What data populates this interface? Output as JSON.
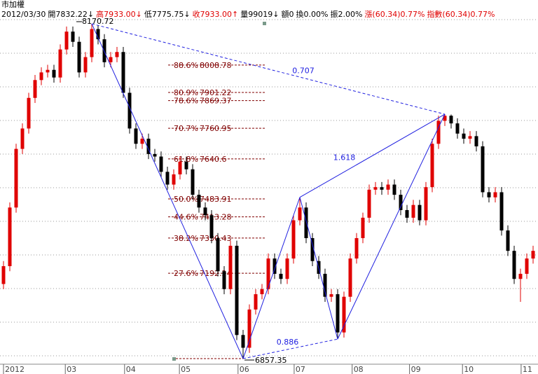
{
  "chart_data": {
    "type": "candlestick",
    "title": "市加權",
    "header": [
      {
        "text": "2012/03/30",
        "color": "#000000"
      },
      {
        "text": "開7832.22↓",
        "color": "#000000"
      },
      {
        "text": "高7933.00↓",
        "color": "#e00000"
      },
      {
        "text": "低7775.75↓",
        "color": "#000000"
      },
      {
        "text": "收7933.00↑",
        "color": "#e00000"
      },
      {
        "text": "量99019↓",
        "color": "#000000"
      },
      {
        "text": "額0",
        "color": "#000000"
      },
      {
        "text": "換0.00%",
        "color": "#000000"
      },
      {
        "text": "振2.00%",
        "color": "#000000"
      },
      {
        "text": "漲(60.34)0.77%",
        "color": "#e00000"
      },
      {
        "text": "指數(60.34)0.77%",
        "color": "#e00000"
      }
    ],
    "up_color": "#e00000",
    "down_color": "#000000",
    "ylim": [
      6797,
      8264
    ],
    "xticks": [
      {
        "value": 0,
        "label": "2012"
      },
      {
        "value": 9.8,
        "label": "03"
      },
      {
        "value": 19.2,
        "label": "04"
      },
      {
        "value": 27.9,
        "label": "05"
      },
      {
        "value": 37.2,
        "label": "06"
      },
      {
        "value": 46.1,
        "label": "07"
      },
      {
        "value": 55.3,
        "label": "08"
      },
      {
        "value": 64.4,
        "label": "09"
      },
      {
        "value": 72.8,
        "label": "10"
      },
      {
        "value": 82.1,
        "label": "11"
      }
    ],
    "candles": [
      [
        7150,
        7240,
        7130,
        7220
      ],
      [
        7220,
        7470,
        7200,
        7450
      ],
      [
        7450,
        7700,
        7430,
        7680
      ],
      [
        7680,
        7780,
        7660,
        7760
      ],
      [
        7760,
        7900,
        7740,
        7880
      ],
      [
        7880,
        7970,
        7860,
        7950
      ],
      [
        7950,
        8000,
        7930,
        7980
      ],
      [
        7980,
        8010,
        7960,
        7990
      ],
      [
        7990,
        8010,
        7940,
        7960
      ],
      [
        7960,
        8090,
        7940,
        8070
      ],
      [
        8070,
        8160,
        8050,
        8140
      ],
      [
        8140,
        8160,
        8080,
        8100
      ],
      [
        8100,
        8120,
        7960,
        7980
      ],
      [
        7980,
        8060,
        7960,
        8040
      ],
      [
        8040,
        8170.72,
        8020,
        8150
      ],
      [
        8150,
        8165,
        8090,
        8110
      ],
      [
        8110,
        8130,
        8000,
        8020
      ],
      [
        8020,
        8060,
        8000,
        8040
      ],
      [
        8040,
        8080,
        8020,
        8060
      ],
      [
        8060,
        8080,
        7880,
        7900
      ],
      [
        7900,
        7920,
        7740,
        7760
      ],
      [
        7760,
        7780,
        7680,
        7700
      ],
      [
        7700,
        7740,
        7680,
        7720
      ],
      [
        7720,
        7740,
        7640,
        7660
      ],
      [
        7660,
        7680,
        7630,
        7650
      ],
      [
        7650,
        7670,
        7570,
        7590
      ],
      [
        7590,
        7610,
        7520,
        7540
      ],
      [
        7540,
        7600,
        7520,
        7580
      ],
      [
        7580,
        7650,
        7560,
        7630
      ],
      [
        7630,
        7650,
        7580,
        7600
      ],
      [
        7600,
        7620,
        7480,
        7500
      ],
      [
        7500,
        7520,
        7430,
        7450
      ],
      [
        7450,
        7470,
        7400,
        7420
      ],
      [
        7420,
        7440,
        7310,
        7330
      ],
      [
        7330,
        7350,
        7180,
        7200
      ],
      [
        7200,
        7220,
        7110,
        7130
      ],
      [
        7130,
        7320,
        7110,
        7300
      ],
      [
        7300,
        7320,
        6930,
        6950
      ],
      [
        6950,
        6970,
        6857.35,
        6900
      ],
      [
        6900,
        7070,
        6880,
        7050
      ],
      [
        7050,
        7130,
        7030,
        7110
      ],
      [
        7110,
        7150,
        7090,
        7130
      ],
      [
        7130,
        7270,
        7110,
        7250
      ],
      [
        7250,
        7270,
        7170,
        7190
      ],
      [
        7190,
        7210,
        7150,
        7170
      ],
      [
        7170,
        7270,
        7150,
        7250
      ],
      [
        7250,
        7420,
        7230,
        7400
      ],
      [
        7400,
        7490,
        7380,
        7450
      ],
      [
        7450,
        7470,
        7310,
        7330
      ],
      [
        7330,
        7350,
        7220,
        7240
      ],
      [
        7240,
        7260,
        7170,
        7190
      ],
      [
        7190,
        7210,
        7080,
        7100
      ],
      [
        7100,
        7130,
        7080,
        7110
      ],
      [
        7110,
        7130,
        6934,
        6960
      ],
      [
        6960,
        7120,
        6940,
        7100
      ],
      [
        7100,
        7270,
        7080,
        7250
      ],
      [
        7250,
        7350,
        7230,
        7330
      ],
      [
        7330,
        7430,
        7310,
        7410
      ],
      [
        7410,
        7540,
        7390,
        7520
      ],
      [
        7520,
        7550,
        7500,
        7530
      ],
      [
        7530,
        7550,
        7500,
        7520
      ],
      [
        7520,
        7560,
        7500,
        7540
      ],
      [
        7540,
        7560,
        7480,
        7500
      ],
      [
        7500,
        7520,
        7420,
        7440
      ],
      [
        7440,
        7460,
        7390,
        7410
      ],
      [
        7410,
        7480,
        7390,
        7460
      ],
      [
        7460,
        7480,
        7380,
        7400
      ],
      [
        7400,
        7550,
        7380,
        7530
      ],
      [
        7530,
        7720,
        7510,
        7700
      ],
      [
        7700,
        7810,
        7680,
        7790
      ],
      [
        7790,
        7816,
        7770,
        7810
      ],
      [
        7810,
        7815,
        7760,
        7780
      ],
      [
        7780,
        7800,
        7720,
        7740
      ],
      [
        7740,
        7760,
        7700,
        7720
      ],
      [
        7720,
        7750,
        7700,
        7730
      ],
      [
        7730,
        7750,
        7670,
        7690
      ],
      [
        7690,
        7710,
        7490,
        7510
      ],
      [
        7510,
        7530,
        7470,
        7490
      ],
      [
        7490,
        7530,
        7470,
        7510
      ],
      [
        7510,
        7530,
        7340,
        7360
      ],
      [
        7360,
        7380,
        7260,
        7280
      ],
      [
        7280,
        7300,
        7150,
        7170
      ],
      [
        7170,
        7210,
        7080,
        7190
      ],
      [
        7190,
        7270,
        7170,
        7250
      ],
      [
        7250,
        7300,
        7230,
        7280
      ]
    ],
    "pattern": {
      "color": "#2020e0",
      "points": [
        {
          "index": 14,
          "value": 8170.72
        },
        {
          "index": 38,
          "value": 6857.35
        },
        {
          "index": 47,
          "value": 7490
        },
        {
          "index": 53,
          "value": 6934
        },
        {
          "index": 70,
          "value": 7816
        }
      ],
      "ratios": {
        "XD": 0.707,
        "BD": 1.618,
        "AC": 0.886
      }
    },
    "fib_color": "#800000",
    "fib_levels": [
      {
        "label": "88.6%",
        "value": 8008.78
      },
      {
        "label": "80.9%",
        "value": 7901.22
      },
      {
        "label": "78.6%",
        "value": 7869.37
      },
      {
        "label": "70.7%",
        "value": 7760.95
      },
      {
        "label": "61.8%",
        "value": 7640.6
      },
      {
        "label": "50.0%",
        "value": 7483.91
      },
      {
        "label": "44.6%",
        "value": 7413.28
      },
      {
        "label": "38.2%",
        "value": 7330.43
      },
      {
        "label": "27.6%",
        "value": 7192.24
      }
    ]
  }
}
